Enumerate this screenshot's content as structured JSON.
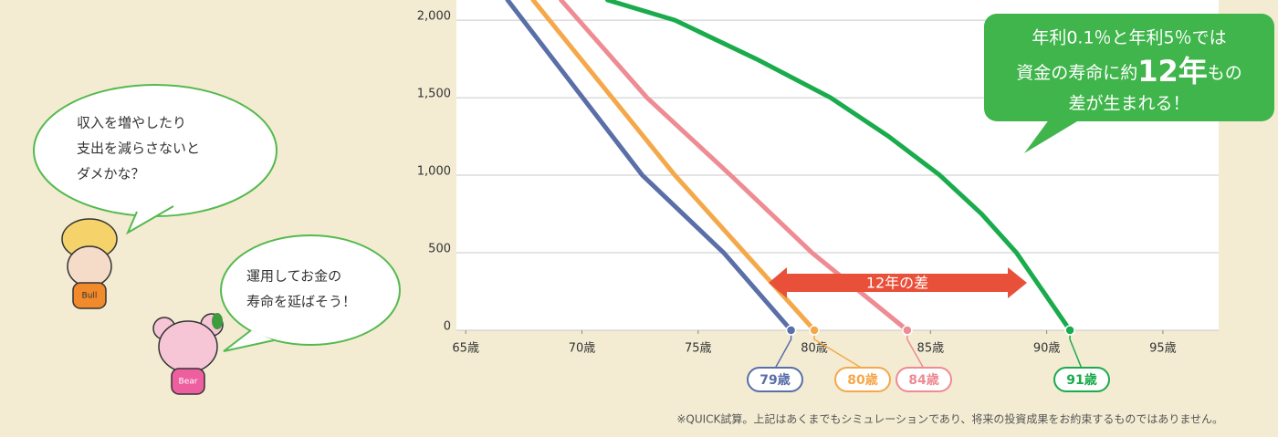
{
  "chart_data": {
    "type": "line",
    "xlim": [
      64.6,
      97.4
    ],
    "ylim": [
      0,
      2130
    ],
    "yticks": [
      0,
      500,
      {
        "value": 1000,
        "label": "1,000"
      },
      {
        "value": 1500,
        "label": "1,500"
      },
      {
        "value": 2000,
        "label": "2,000"
      }
    ],
    "xticks": [
      {
        "value": 65,
        "label": "65歳"
      },
      {
        "value": 70,
        "label": "70歳"
      },
      {
        "value": 75,
        "label": "75歳"
      },
      {
        "value": 80,
        "label": "80歳"
      },
      {
        "value": 85,
        "label": "85歳"
      },
      {
        "value": 90,
        "label": "90歳"
      },
      {
        "value": 95,
        "label": "95歳"
      }
    ],
    "grid": true,
    "series": [
      {
        "color": "#5a6ea8",
        "label": "79歳",
        "x": [
          66.8,
          72.6,
          76.1,
          79
        ],
        "values": [
          2130,
          1000,
          500,
          0
        ]
      },
      {
        "color": "#f5a84a",
        "label": "80歳",
        "x": [
          67.9,
          74.0,
          77.0,
          80
        ],
        "values": [
          2130,
          1000,
          500,
          0
        ]
      },
      {
        "color": "#ee8b93",
        "label": "84歳",
        "x": [
          69.1,
          72.8,
          76.4,
          79.9,
          84
        ],
        "values": [
          2130,
          1500,
          1000,
          500,
          0
        ]
      },
      {
        "color": "#1aab4c",
        "label": "91歳",
        "x": [
          71.1,
          74.0,
          77.5,
          80.7,
          83.2,
          85.4,
          87.2,
          88.7,
          91
        ],
        "values": [
          2130,
          2000,
          1750,
          1500,
          1250,
          1000,
          750,
          500,
          0
        ]
      }
    ],
    "callout": {
      "line1": "年利0.1％と年利5％では",
      "line2a": "資金の寿命に約",
      "line2b": "12年",
      "line2c": "もの",
      "line3": "差が生まれる！"
    },
    "arrow_label": "12年の差",
    "footnote": "※QUICK試算。上記はあくまでもシミュレーションであり、将来の投資成果をお約束するものではありません。"
  },
  "bubbles": {
    "bull": [
      "収入を増やしたり",
      "支出を減らさないと",
      "ダメかな？"
    ],
    "bear": [
      "運用してお金の",
      "寿命を延ばそう！"
    ]
  },
  "characters": {
    "bull": "Bull",
    "bear": "Bear"
  }
}
